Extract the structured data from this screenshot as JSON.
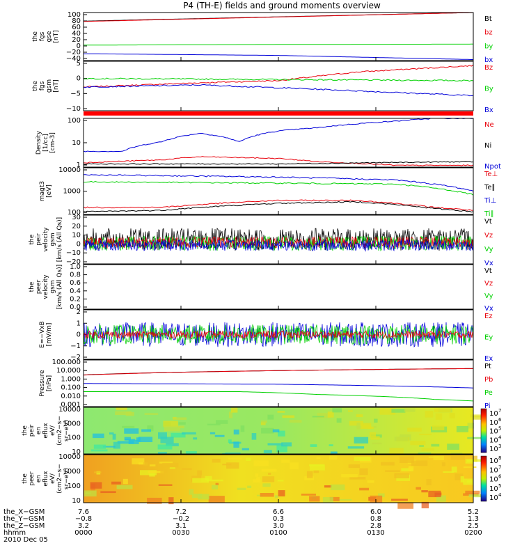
{
  "title": "P4 (TH-E) fields and ground moments overview",
  "colors": {
    "black": "#000000",
    "red": "#e8000b",
    "green": "#00d000",
    "blue": "#0000d8"
  },
  "chart_data": [
    {
      "id": "fgs-gse",
      "type": "line",
      "ylabel": [
        "the",
        "fgs",
        "gse",
        "[nT]"
      ],
      "yticks": [
        "100",
        "80",
        "60",
        "40",
        "20",
        "0",
        "−20",
        "−40"
      ],
      "ylim": [
        -40,
        100
      ],
      "legend": [
        {
          "name": "Bt",
          "color": "black"
        },
        {
          "name": "bz",
          "color": "red"
        },
        {
          "name": "by",
          "color": "green"
        },
        {
          "name": "bx",
          "color": "blue"
        }
      ],
      "series": [
        {
          "name": "Bt",
          "color": "black",
          "x": [
            0,
            1
          ],
          "values": [
            75,
            100
          ]
        },
        {
          "name": "bz",
          "color": "red",
          "x": [
            0,
            1
          ],
          "values": [
            74,
            100
          ]
        },
        {
          "name": "by",
          "color": "green",
          "x": [
            0,
            0.5,
            1
          ],
          "values": [
            5,
            7,
            8
          ]
        },
        {
          "name": "bx",
          "color": "blue",
          "x": [
            0,
            0.5,
            1
          ],
          "values": [
            -20,
            -25,
            -37
          ]
        }
      ]
    },
    {
      "id": "fgs-gsm",
      "type": "line",
      "ylabel": [
        "the",
        "fgs",
        "gsm",
        "[nT]"
      ],
      "yticks": [
        "5",
        "0",
        "−5",
        "−10"
      ],
      "ylim": [
        -14,
        9
      ],
      "legend": [
        {
          "name": "Bz",
          "color": "red"
        },
        {
          "name": "By",
          "color": "green"
        },
        {
          "name": "Bx",
          "color": "blue"
        }
      ],
      "series": [
        {
          "name": "Bz",
          "color": "red",
          "x": [
            0,
            0.3,
            0.5,
            0.7,
            1
          ],
          "values": [
            -3,
            -1,
            0,
            4,
            7
          ]
        },
        {
          "name": "By",
          "color": "green",
          "x": [
            0,
            0.5,
            1
          ],
          "values": [
            1,
            0.5,
            0
          ]
        },
        {
          "name": "Bx",
          "color": "blue",
          "x": [
            0,
            0.3,
            0.6,
            1
          ],
          "values": [
            -3,
            -2,
            -4,
            -7
          ]
        }
      ]
    },
    {
      "id": "density",
      "type": "line",
      "ylabel": [
        "Density",
        "[1/cc]",
        "[cm-3]"
      ],
      "yticks": [
        "100",
        "10",
        "1"
      ],
      "yscale": "log",
      "ylim": [
        0.4,
        200
      ],
      "legend": [
        {
          "name": "Ne",
          "color": "red"
        },
        {
          "name": "Ni",
          "color": "black"
        },
        {
          "name": "Npot",
          "color": "blue"
        }
      ],
      "series": [
        {
          "name": "Npot",
          "color": "blue",
          "x": [
            0,
            0.1,
            0.2,
            0.3,
            0.4,
            0.5,
            0.6,
            0.7,
            0.8,
            0.9,
            1
          ],
          "values": [
            3,
            3,
            10,
            30,
            10,
            40,
            60,
            100,
            140,
            200,
            200
          ]
        },
        {
          "name": "Ne",
          "color": "red",
          "x": [
            0,
            0.2,
            0.3,
            0.5,
            0.6,
            0.8,
            1
          ],
          "values": [
            0.7,
            1,
            1.5,
            1.2,
            0.8,
            0.5,
            0.5
          ]
        },
        {
          "name": "Ni",
          "color": "black",
          "x": [
            0,
            0.5,
            1
          ],
          "values": [
            0.6,
            0.6,
            0.8
          ]
        }
      ]
    },
    {
      "id": "temperature",
      "type": "line",
      "ylabel": [
        "magt3",
        "[eV]"
      ],
      "yticks": [
        "10000",
        "1000",
        "100"
      ],
      "yscale": "log",
      "ylim": [
        100,
        10000
      ],
      "legend": [
        {
          "name": "Te⊥",
          "color": "red"
        },
        {
          "name": "Te∥",
          "color": "black"
        },
        {
          "name": "Ti⊥",
          "color": "blue"
        },
        {
          "name": "Ti∥",
          "color": "green"
        }
      ],
      "series": [
        {
          "name": "Ti⊥",
          "color": "blue",
          "x": [
            0,
            0.5,
            0.8,
            1
          ],
          "values": [
            5000,
            4000,
            3000,
            1000
          ]
        },
        {
          "name": "Ti∥",
          "color": "green",
          "x": [
            0,
            0.5,
            0.8,
            1
          ],
          "values": [
            2500,
            2200,
            2000,
            700
          ]
        },
        {
          "name": "Te⊥",
          "color": "red",
          "x": [
            0,
            0.2,
            0.5,
            0.7,
            0.9,
            1
          ],
          "values": [
            200,
            200,
            400,
            400,
            200,
            150
          ]
        },
        {
          "name": "Te∥",
          "color": "black",
          "x": [
            0,
            0.2,
            0.5,
            0.7,
            0.9,
            1
          ],
          "values": [
            130,
            150,
            300,
            350,
            180,
            130
          ]
        }
      ]
    },
    {
      "id": "peir-velocity",
      "type": "line",
      "ylabel": [
        "the",
        "peir",
        "velocity",
        "gsm",
        "[km/s (All Qs)]"
      ],
      "yticks": [
        "30",
        "20",
        "10",
        "0",
        "−10",
        "−20"
      ],
      "ylim": [
        -22,
        30
      ],
      "legend": [
        {
          "name": "Vt",
          "color": "black"
        },
        {
          "name": "Vz",
          "color": "red"
        },
        {
          "name": "Vy",
          "color": "green"
        },
        {
          "name": "Vx",
          "color": "blue"
        }
      ]
    },
    {
      "id": "peer-velocity",
      "type": "line",
      "ylabel": [
        "the",
        "peer",
        "velocity",
        "gsm",
        "[km/s (All Qs)]"
      ],
      "yticks": [
        "1.0",
        "0.8",
        "0.6",
        "0.4",
        "0.2",
        "0.0"
      ],
      "ylim": [
        0,
        1
      ],
      "legend": [
        {
          "name": "Vt",
          "color": "black"
        },
        {
          "name": "Vz",
          "color": "red"
        },
        {
          "name": "Vy",
          "color": "green"
        },
        {
          "name": "Vx",
          "color": "blue"
        }
      ]
    },
    {
      "id": "efield",
      "type": "line",
      "ylabel": [
        "E=−VxB",
        "[mV/m]"
      ],
      "yticks": [
        "2",
        "1",
        "0",
        "−1",
        "−2"
      ],
      "ylim": [
        -2,
        2
      ],
      "legend": [
        {
          "name": "Ez",
          "color": "red"
        },
        {
          "name": "Ey",
          "color": "green"
        },
        {
          "name": "Ex",
          "color": "blue"
        }
      ]
    },
    {
      "id": "pressure",
      "type": "line",
      "ylabel": [
        "Pressure",
        "[nPa]"
      ],
      "yticks": [
        "100.000",
        "10.000",
        "1.000",
        "0.100",
        "0.010",
        "0.001"
      ],
      "yscale": "log",
      "ylim": [
        0.001,
        100
      ],
      "legend": [
        {
          "name": "Pt",
          "color": "black"
        },
        {
          "name": "Pb",
          "color": "red"
        },
        {
          "name": "Pe",
          "color": "green"
        },
        {
          "name": "Pi",
          "color": "blue"
        }
      ],
      "series": [
        {
          "name": "Pt",
          "color": "black",
          "x": [
            0,
            1
          ],
          "values": [
            2.5,
            12
          ]
        },
        {
          "name": "Pb",
          "color": "red",
          "x": [
            0,
            1
          ],
          "values": [
            2.4,
            12
          ]
        },
        {
          "name": "Pi",
          "color": "blue",
          "x": [
            0,
            0.5,
            1
          ],
          "values": [
            0.3,
            0.25,
            0.1
          ]
        },
        {
          "name": "Pe",
          "color": "green",
          "x": [
            0,
            0.4,
            0.6,
            0.9,
            1
          ],
          "values": [
            0.04,
            0.04,
            0.02,
            0.006,
            0.004
          ]
        }
      ]
    },
    {
      "id": "peir-spec",
      "type": "heatmap",
      "ylabel": [
        "the",
        "peir",
        "en",
        "eflux",
        "eV/",
        "(cm2−s−",
        "sr−eV)"
      ],
      "yticks": [
        "10000",
        "1000",
        "100",
        "10"
      ],
      "cbticks": [
        "10",
        "10",
        "10",
        "10",
        "10"
      ],
      "cbexp": [
        "7",
        "6",
        "5",
        "4",
        "3"
      ]
    },
    {
      "id": "peer-spec",
      "type": "heatmap",
      "ylabel": [
        "the",
        "peer",
        "en",
        "eflux",
        "eV/",
        "(cm2−s−",
        "sr−eV)"
      ],
      "yticks": [
        "10000",
        "1000",
        "100",
        "10"
      ],
      "cbticks": [
        "10",
        "10",
        "10",
        "10",
        "10"
      ],
      "cbexp": [
        "8",
        "7",
        "6",
        "5",
        "4"
      ]
    }
  ],
  "xaxis": {
    "rows": [
      {
        "label": "the_X−GSM",
        "values": [
          "7.6",
          "7.2",
          "6.6",
          "6.0",
          "5.2"
        ]
      },
      {
        "label": "the_Y−GSM",
        "values": [
          "−0.8",
          "−0.2",
          "0.3",
          "0.8",
          "1.3"
        ]
      },
      {
        "label": "the_Z−GSM",
        "values": [
          "3.2",
          "3.1",
          "3.0",
          "2.8",
          "2.5"
        ]
      },
      {
        "label": "hhmm",
        "values": [
          "0000",
          "0030",
          "0100",
          "0130",
          "0200"
        ]
      }
    ],
    "date": "2010 Dec 05"
  }
}
